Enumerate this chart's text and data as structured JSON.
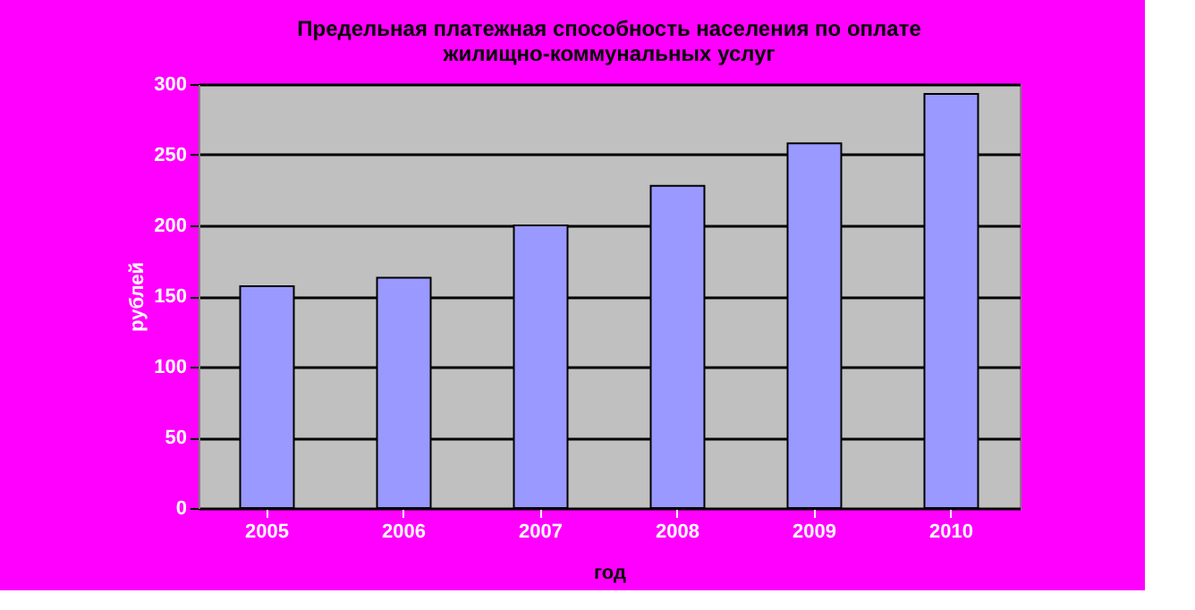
{
  "chart_data": {
    "type": "bar",
    "title": "Предельная платежная способность населения по оплате жилищно-коммунальных услуг",
    "xlabel": "год",
    "ylabel": "рублей",
    "categories": [
      "2005",
      "2006",
      "2007",
      "2008",
      "2009",
      "2010"
    ],
    "values": [
      157,
      163,
      200,
      228,
      258,
      293
    ],
    "color": "#9999ff",
    "ylim": [
      0,
      300
    ],
    "yticks": [
      0,
      50,
      100,
      150,
      200,
      250,
      300
    ],
    "grid": "y"
  }
}
